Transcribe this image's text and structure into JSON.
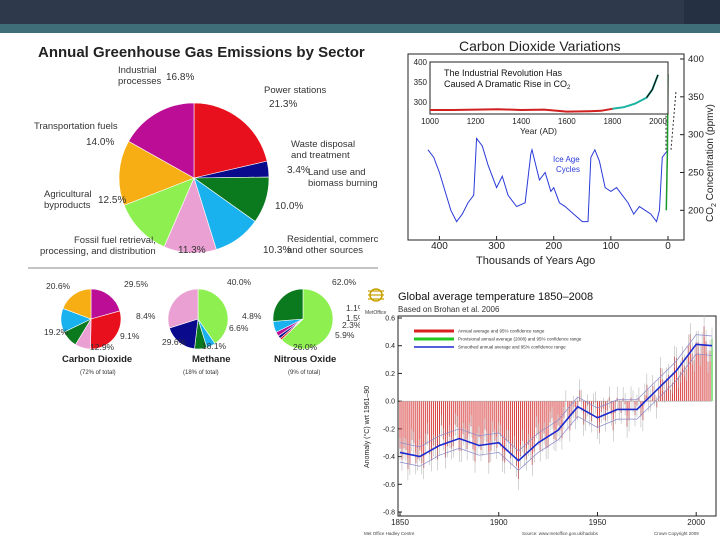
{
  "slide": {
    "colors": {
      "header": "#2e3a4c",
      "accent_band": "#3f6d78"
    }
  },
  "ghg": {
    "title": "Annual Greenhouse Gas Emissions by Sector",
    "main_labels": {
      "industrial": "Industrial processes",
      "power": "Power stations",
      "waste": "Waste disposal and treatment",
      "land": "Land use and biomass burning",
      "residential": "Residential, commercial, and other sources",
      "fossil": "Fossil fuel retrieval, processing, and distribution",
      "agri": "Agricultural byproducts",
      "transport": "Transportation fuels"
    },
    "small": {
      "co2": {
        "name": "Carbon Dioxide",
        "share": "(72% of total)",
        "pcts": [
          "20.6%",
          "29.5%",
          "8.4%",
          "9.1%",
          "12.9%",
          "19.2%"
        ]
      },
      "methane": {
        "name": "Methane",
        "share": "(18% of total)",
        "pcts": [
          "40.0%",
          "4.8%",
          "6.6%",
          "18.1%",
          "29.6%"
        ]
      },
      "n2o": {
        "name": "Nitrous Oxide",
        "share": "(9% of total)",
        "pcts": [
          "62.0%",
          "1.1%",
          "1.5%",
          "2.3%",
          "5.9%",
          "26.0%"
        ]
      }
    }
  },
  "co2v": {
    "title": "Carbon Dioxide Variations",
    "inset_caption_1": "The Industrial Revolution Has",
    "inset_caption_2": "Caused A Dramatic Rise in CO",
    "inset_caption_sub": "2",
    "inset_xlabel": "Year (AD)",
    "ice_age_1": "Ice Age",
    "ice_age_2": "Cycles",
    "xlabel": "Thousands of Years Ago",
    "ylabel_pre": "CO",
    "ylabel_sub": "2",
    "ylabel_post": " Concentration (ppmv)"
  },
  "temp": {
    "title": "Global average temperature 1850–2008",
    "subtitle": "Based on Brohan et al. 2006",
    "logo_text": "MetOffice",
    "ylabel": "Anomaly (°C) wrt 1961–90",
    "legend": [
      "Annual average and 95% confidence range",
      "Provisional annual average (2008) and 95% confidence range",
      "Smoothed annual average and 95% confidence range"
    ],
    "footer_left": "Met Office Hadley Centre",
    "footer_mid": "Source: www.metoffice.gov.uk/hadobs",
    "footer_right": "Crown Copyright 2009"
  },
  "chart_data": [
    {
      "type": "pie",
      "title": "Annual Greenhouse Gas Emissions by Sector",
      "categories": [
        "Power stations",
        "Waste disposal and treatment",
        "Land use and biomass burning",
        "Residential, commercial, and other sources",
        "Fossil fuel retrieval, processing, and distribution",
        "Agricultural byproducts",
        "Transportation fuels",
        "Industrial processes"
      ],
      "values": [
        21.3,
        3.4,
        10.0,
        10.3,
        11.3,
        12.5,
        14.0,
        16.8
      ],
      "value_labels": [
        "21.3%",
        "3.4%",
        "10.0%",
        "10.3%",
        "11.3%",
        "12.5%",
        "14.0%",
        "16.8%"
      ],
      "colors": [
        "#e8101c",
        "#0a0a8c",
        "#0b7a1e",
        "#1ab2ee",
        "#eaa0d2",
        "#8ef050",
        "#f7ae14",
        "#bc0d96"
      ]
    },
    {
      "type": "pie",
      "title": "Carbon Dioxide",
      "values": [
        20.6,
        29.5,
        8.4,
        9.1,
        12.9,
        19.2
      ],
      "colors": [
        "#bc0d96",
        "#e8101c",
        "#eaa0d2",
        "#0b7a1e",
        "#1ab2ee",
        "#f7ae14"
      ]
    },
    {
      "type": "pie",
      "title": "Methane",
      "values": [
        40.0,
        4.8,
        6.6,
        18.1,
        29.6
      ],
      "colors": [
        "#8ef050",
        "#1ab2ee",
        "#0b7a1e",
        "#0a0a8c",
        "#eaa0d2"
      ]
    },
    {
      "type": "pie",
      "title": "Nitrous Oxide",
      "values": [
        62.0,
        1.1,
        1.5,
        2.3,
        5.9,
        26.0
      ],
      "colors": [
        "#8ef050",
        "#e8101c",
        "#0a0a8c",
        "#bc0d96",
        "#1ab2ee",
        "#0b7a1e"
      ]
    },
    {
      "type": "line",
      "title": "Carbon Dioxide Variations",
      "xlabel": "Thousands of Years Ago",
      "ylabel": "CO2 Concentration (ppmv)",
      "xlim": [
        420,
        0
      ],
      "ylim": [
        170,
        400
      ],
      "xticks": [
        400,
        300,
        200,
        100,
        0
      ],
      "yticks": [
        200,
        250,
        300,
        350,
        400
      ],
      "series": [
        {
          "x": [
            420,
            410,
            400,
            390,
            380,
            370,
            360,
            350,
            340,
            335,
            325,
            315,
            300,
            290,
            280,
            265,
            250,
            240,
            238,
            225,
            215,
            205,
            200,
            190,
            180,
            165,
            150,
            140,
            135,
            128,
            120,
            110,
            100,
            90,
            80,
            70,
            60,
            50,
            40,
            30,
            20,
            15,
            10,
            0
          ],
          "y": [
            280,
            270,
            250,
            225,
            200,
            185,
            195,
            210,
            220,
            295,
            285,
            260,
            230,
            245,
            220,
            205,
            210,
            275,
            280,
            240,
            250,
            225,
            230,
            210,
            205,
            195,
            185,
            185,
            270,
            280,
            265,
            230,
            225,
            230,
            220,
            210,
            195,
            205,
            200,
            195,
            185,
            200,
            270,
            280
          ]
        }
      ]
    },
    {
      "type": "line",
      "title": "The Industrial Revolution Has Caused A Dramatic Rise in CO2",
      "xlabel": "Year (AD)",
      "xlim": [
        1000,
        2000
      ],
      "ylim": [
        270,
        400
      ],
      "xticks": [
        1000,
        1200,
        1400,
        1600,
        1800,
        2000
      ],
      "yticks": [
        300,
        350,
        400
      ],
      "series": [
        {
          "x": [
            1000,
            1100,
            1200,
            1300,
            1400,
            1500,
            1600,
            1700,
            1750,
            1800,
            1850,
            1900,
            1950,
            1975,
            2000
          ],
          "y": [
            280,
            280,
            281,
            282,
            280,
            281,
            276,
            277,
            278,
            283,
            287,
            296,
            311,
            331,
            368
          ]
        }
      ]
    },
    {
      "type": "bar",
      "title": "Global average temperature 1850–2008",
      "xlabel": "",
      "ylabel": "Anomaly (°C) wrt 1961–90",
      "xlim": [
        1850,
        2008
      ],
      "ylim": [
        -0.8,
        0.6
      ],
      "xticks": [
        1850,
        1900,
        1950,
        2000
      ],
      "yticks": [
        -0.8,
        -0.6,
        -0.4,
        -0.2,
        0.0,
        0.2,
        0.4,
        0.6
      ],
      "series": [
        {
          "name": "Smoothed annual average",
          "x": [
            1850,
            1860,
            1870,
            1880,
            1890,
            1900,
            1910,
            1920,
            1930,
            1940,
            1950,
            1960,
            1970,
            1980,
            1990,
            2000,
            2008
          ],
          "y": [
            -0.37,
            -0.4,
            -0.32,
            -0.27,
            -0.32,
            -0.3,
            -0.43,
            -0.3,
            -0.21,
            -0.04,
            -0.12,
            -0.06,
            -0.06,
            0.08,
            0.22,
            0.41,
            0.4
          ]
        }
      ]
    }
  ]
}
